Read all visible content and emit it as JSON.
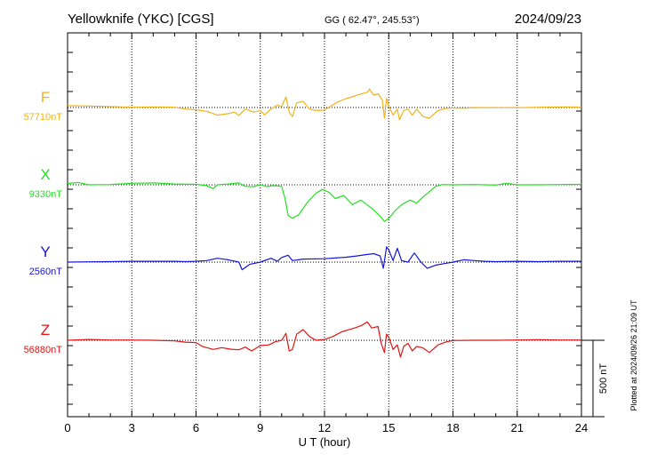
{
  "header": {
    "station": "Yellowknife (YKC)  [CGS]",
    "coords": "GG ( 62.47°, 245.53°)",
    "date": "2024/09/23"
  },
  "side_note": "Plotted at 2024/09/26 21:09 UT",
  "scale_label": "500 nT",
  "chart_data": {
    "type": "line",
    "xlabel": "U T (hour)",
    "xlim": [
      0,
      24
    ],
    "xticks": [
      0,
      3,
      6,
      9,
      12,
      15,
      18,
      21,
      24
    ],
    "scale_bar_nT": 500,
    "series": [
      {
        "name": "F",
        "baseline_label": "57710nT",
        "baseline": 57710,
        "color": "#f2b21b",
        "points": [
          [
            0,
            57722
          ],
          [
            1,
            57720
          ],
          [
            2,
            57716
          ],
          [
            3,
            57712
          ],
          [
            4,
            57714
          ],
          [
            5,
            57712
          ],
          [
            5.5,
            57700
          ],
          [
            6,
            57695
          ],
          [
            6.5,
            57685
          ],
          [
            7,
            57660
          ],
          [
            7.5,
            57670
          ],
          [
            7.8,
            57680
          ],
          [
            8,
            57658
          ],
          [
            8.3,
            57700
          ],
          [
            8.7,
            57680
          ],
          [
            9,
            57690
          ],
          [
            9.2,
            57662
          ],
          [
            9.5,
            57700
          ],
          [
            9.8,
            57726
          ],
          [
            10,
            57715
          ],
          [
            10.2,
            57780
          ],
          [
            10.35,
            57680
          ],
          [
            10.5,
            57650
          ],
          [
            10.7,
            57740
          ],
          [
            11,
            57750
          ],
          [
            11.3,
            57700
          ],
          [
            11.6,
            57690
          ],
          [
            12,
            57693
          ],
          [
            12.3,
            57720
          ],
          [
            12.6,
            57745
          ],
          [
            13,
            57768
          ],
          [
            13.3,
            57780
          ],
          [
            13.6,
            57795
          ],
          [
            14,
            57810
          ],
          [
            14.1,
            57830
          ],
          [
            14.3,
            57790
          ],
          [
            14.5,
            57800
          ],
          [
            14.7,
            57760
          ],
          [
            14.8,
            57640
          ],
          [
            14.9,
            57770
          ],
          [
            15,
            57720
          ],
          [
            15.2,
            57660
          ],
          [
            15.4,
            57700
          ],
          [
            15.5,
            57630
          ],
          [
            15.7,
            57690
          ],
          [
            15.9,
            57700
          ],
          [
            16.1,
            57660
          ],
          [
            16.3,
            57700
          ],
          [
            16.6,
            57650
          ],
          [
            16.9,
            57640
          ],
          [
            17.3,
            57690
          ],
          [
            17.7,
            57705
          ],
          [
            18,
            57707
          ],
          [
            18.5,
            57705
          ],
          [
            19,
            57710
          ],
          [
            20,
            57709
          ],
          [
            21,
            57709
          ],
          [
            22,
            57712
          ],
          [
            23,
            57714
          ],
          [
            24,
            57712
          ]
        ]
      },
      {
        "name": "X",
        "baseline_label": "9330nT",
        "baseline": 9330,
        "color": "#22e022",
        "points": [
          [
            0,
            9338
          ],
          [
            0.5,
            9345
          ],
          [
            1,
            9330
          ],
          [
            2,
            9332
          ],
          [
            3,
            9340
          ],
          [
            4,
            9342
          ],
          [
            5,
            9335
          ],
          [
            6,
            9333
          ],
          [
            6.5,
            9325
          ],
          [
            6.8,
            9305
          ],
          [
            7,
            9330
          ],
          [
            7.5,
            9335
          ],
          [
            8,
            9342
          ],
          [
            8.3,
            9320
          ],
          [
            8.7,
            9318
          ],
          [
            9,
            9332
          ],
          [
            9.3,
            9318
          ],
          [
            9.6,
            9325
          ],
          [
            10,
            9320
          ],
          [
            10.15,
            9245
          ],
          [
            10.3,
            9130
          ],
          [
            10.5,
            9110
          ],
          [
            10.8,
            9135
          ],
          [
            11.2,
            9215
          ],
          [
            11.6,
            9275
          ],
          [
            11.9,
            9300
          ],
          [
            12.2,
            9282
          ],
          [
            12.5,
            9240
          ],
          [
            12.9,
            9260
          ],
          [
            13.3,
            9200
          ],
          [
            13.7,
            9230
          ],
          [
            14,
            9198
          ],
          [
            14.3,
            9165
          ],
          [
            14.6,
            9125
          ],
          [
            14.8,
            9090
          ],
          [
            15,
            9110
          ],
          [
            15.3,
            9160
          ],
          [
            15.6,
            9200
          ],
          [
            16,
            9230
          ],
          [
            16.3,
            9210
          ],
          [
            16.6,
            9250
          ],
          [
            16.9,
            9285
          ],
          [
            17.2,
            9320
          ],
          [
            17.5,
            9332
          ],
          [
            18,
            9330
          ],
          [
            19,
            9332
          ],
          [
            19.5,
            9330
          ],
          [
            20,
            9328
          ],
          [
            20.5,
            9340
          ],
          [
            21,
            9330
          ],
          [
            22,
            9330
          ],
          [
            23,
            9332
          ],
          [
            24,
            9333
          ]
        ]
      },
      {
        "name": "Y",
        "baseline_label": "2560nT",
        "baseline": 2560,
        "color": "#1414dc",
        "points": [
          [
            0,
            2560
          ],
          [
            1,
            2562
          ],
          [
            2,
            2563
          ],
          [
            3,
            2565
          ],
          [
            4,
            2565
          ],
          [
            5,
            2565
          ],
          [
            5.5,
            2563
          ],
          [
            6,
            2565
          ],
          [
            6.5,
            2570
          ],
          [
            7,
            2585
          ],
          [
            7.5,
            2575
          ],
          [
            8,
            2560
          ],
          [
            8.15,
            2510
          ],
          [
            8.5,
            2545
          ],
          [
            9,
            2560
          ],
          [
            9.5,
            2585
          ],
          [
            9.8,
            2565
          ],
          [
            10,
            2590
          ],
          [
            10.3,
            2605
          ],
          [
            10.5,
            2570
          ],
          [
            11,
            2580
          ],
          [
            12,
            2582
          ],
          [
            13,
            2592
          ],
          [
            13.5,
            2600
          ],
          [
            14,
            2610
          ],
          [
            14.3,
            2615
          ],
          [
            14.6,
            2600
          ],
          [
            14.75,
            2520
          ],
          [
            14.9,
            2660
          ],
          [
            15,
            2640
          ],
          [
            15.2,
            2570
          ],
          [
            15.4,
            2650
          ],
          [
            15.6,
            2570
          ],
          [
            15.9,
            2560
          ],
          [
            16.2,
            2620
          ],
          [
            16.5,
            2560
          ],
          [
            16.8,
            2520
          ],
          [
            17.2,
            2540
          ],
          [
            17.6,
            2550
          ],
          [
            18,
            2560
          ],
          [
            18.5,
            2575
          ],
          [
            19,
            2570
          ],
          [
            19.5,
            2565
          ],
          [
            20,
            2563
          ],
          [
            21,
            2565
          ],
          [
            22,
            2563
          ],
          [
            23,
            2565
          ],
          [
            24,
            2565
          ]
        ]
      },
      {
        "name": "Z",
        "baseline_label": "56880nT",
        "baseline": 56880,
        "color": "#e01414",
        "points": [
          [
            0,
            56880
          ],
          [
            1,
            56885
          ],
          [
            2,
            56882
          ],
          [
            3,
            56882
          ],
          [
            4,
            56880
          ],
          [
            5,
            56876
          ],
          [
            5.5,
            56868
          ],
          [
            6,
            56865
          ],
          [
            6.3,
            56840
          ],
          [
            6.8,
            56820
          ],
          [
            7.2,
            56832
          ],
          [
            7.6,
            56822
          ],
          [
            8,
            56818
          ],
          [
            8.3,
            56835
          ],
          [
            8.6,
            56810
          ],
          [
            9,
            56845
          ],
          [
            9.4,
            56850
          ],
          [
            9.7,
            56870
          ],
          [
            10,
            56880
          ],
          [
            10.2,
            56925
          ],
          [
            10.35,
            56810
          ],
          [
            10.5,
            56820
          ],
          [
            10.7,
            56920
          ],
          [
            11,
            56950
          ],
          [
            11.3,
            56905
          ],
          [
            11.6,
            56880
          ],
          [
            12,
            56885
          ],
          [
            12.4,
            56905
          ],
          [
            12.8,
            56935
          ],
          [
            13.1,
            56948
          ],
          [
            13.4,
            56960
          ],
          [
            13.7,
            56975
          ],
          [
            14,
            57000
          ],
          [
            14.2,
            56960
          ],
          [
            14.5,
            56970
          ],
          [
            14.65,
            56860
          ],
          [
            14.8,
            56800
          ],
          [
            14.9,
            56920
          ],
          [
            15,
            56900
          ],
          [
            15.2,
            56820
          ],
          [
            15.4,
            56850
          ],
          [
            15.55,
            56770
          ],
          [
            15.7,
            56840
          ],
          [
            15.9,
            56860
          ],
          [
            16.1,
            56810
          ],
          [
            16.3,
            56840
          ],
          [
            16.6,
            56830
          ],
          [
            16.9,
            56800
          ],
          [
            17.3,
            56850
          ],
          [
            17.7,
            56870
          ],
          [
            18,
            56878
          ],
          [
            19,
            56880
          ],
          [
            20,
            56880
          ],
          [
            21,
            56882
          ],
          [
            22,
            56884
          ],
          [
            23,
            56882
          ],
          [
            24,
            56882
          ]
        ]
      }
    ]
  }
}
